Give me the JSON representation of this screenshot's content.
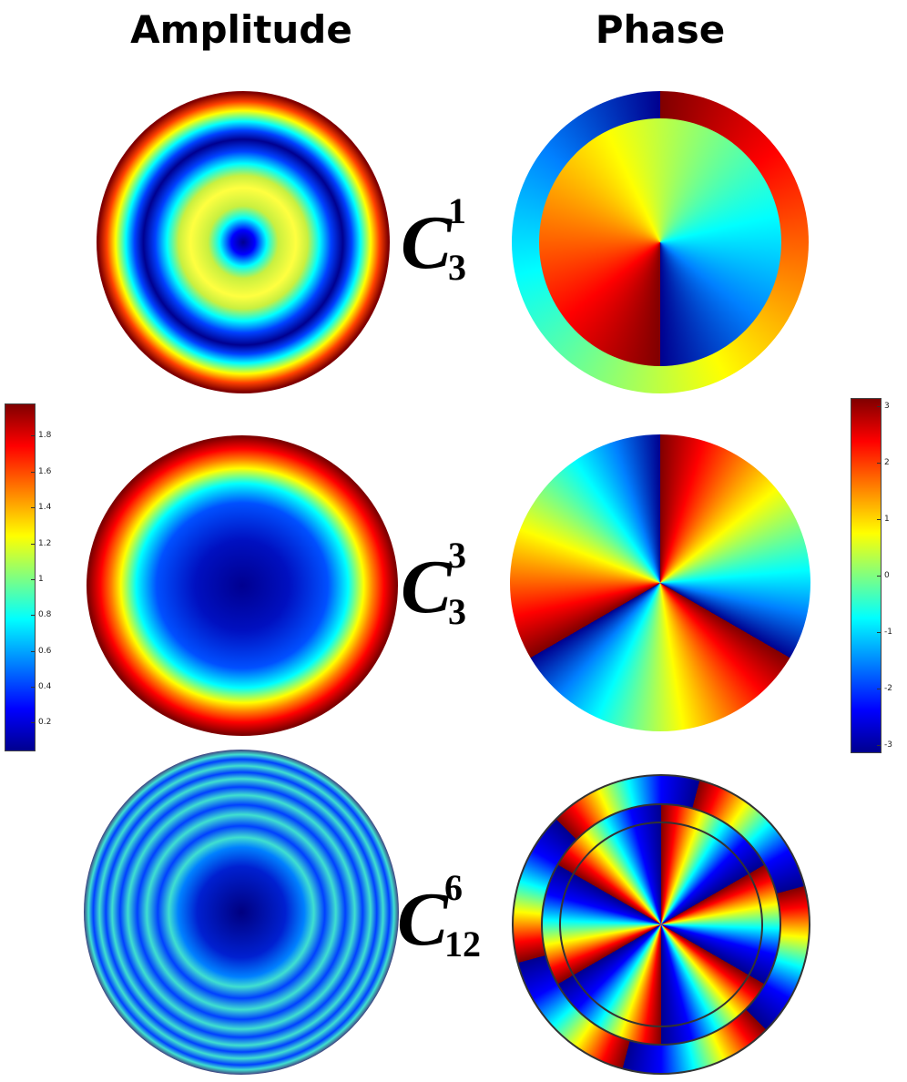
{
  "titles": {
    "amplitude": "Amplitude",
    "phase": "Phase"
  },
  "modes": [
    {
      "letter": "C",
      "subscript": "3",
      "superscript": "1"
    },
    {
      "letter": "C",
      "subscript": "3",
      "superscript": "3"
    },
    {
      "letter": "C",
      "subscript": "12",
      "superscript": "6"
    }
  ],
  "amplitude_colorbar": {
    "range": [
      0.04,
      1.98
    ],
    "ticks": [
      0.2,
      0.4,
      0.6,
      0.8,
      1,
      1.2,
      1.4,
      1.6,
      1.8
    ]
  },
  "phase_colorbar": {
    "range": [
      -3.14,
      3.14
    ],
    "ticks": [
      -3,
      -2,
      -1,
      0,
      1,
      2,
      3
    ]
  }
}
